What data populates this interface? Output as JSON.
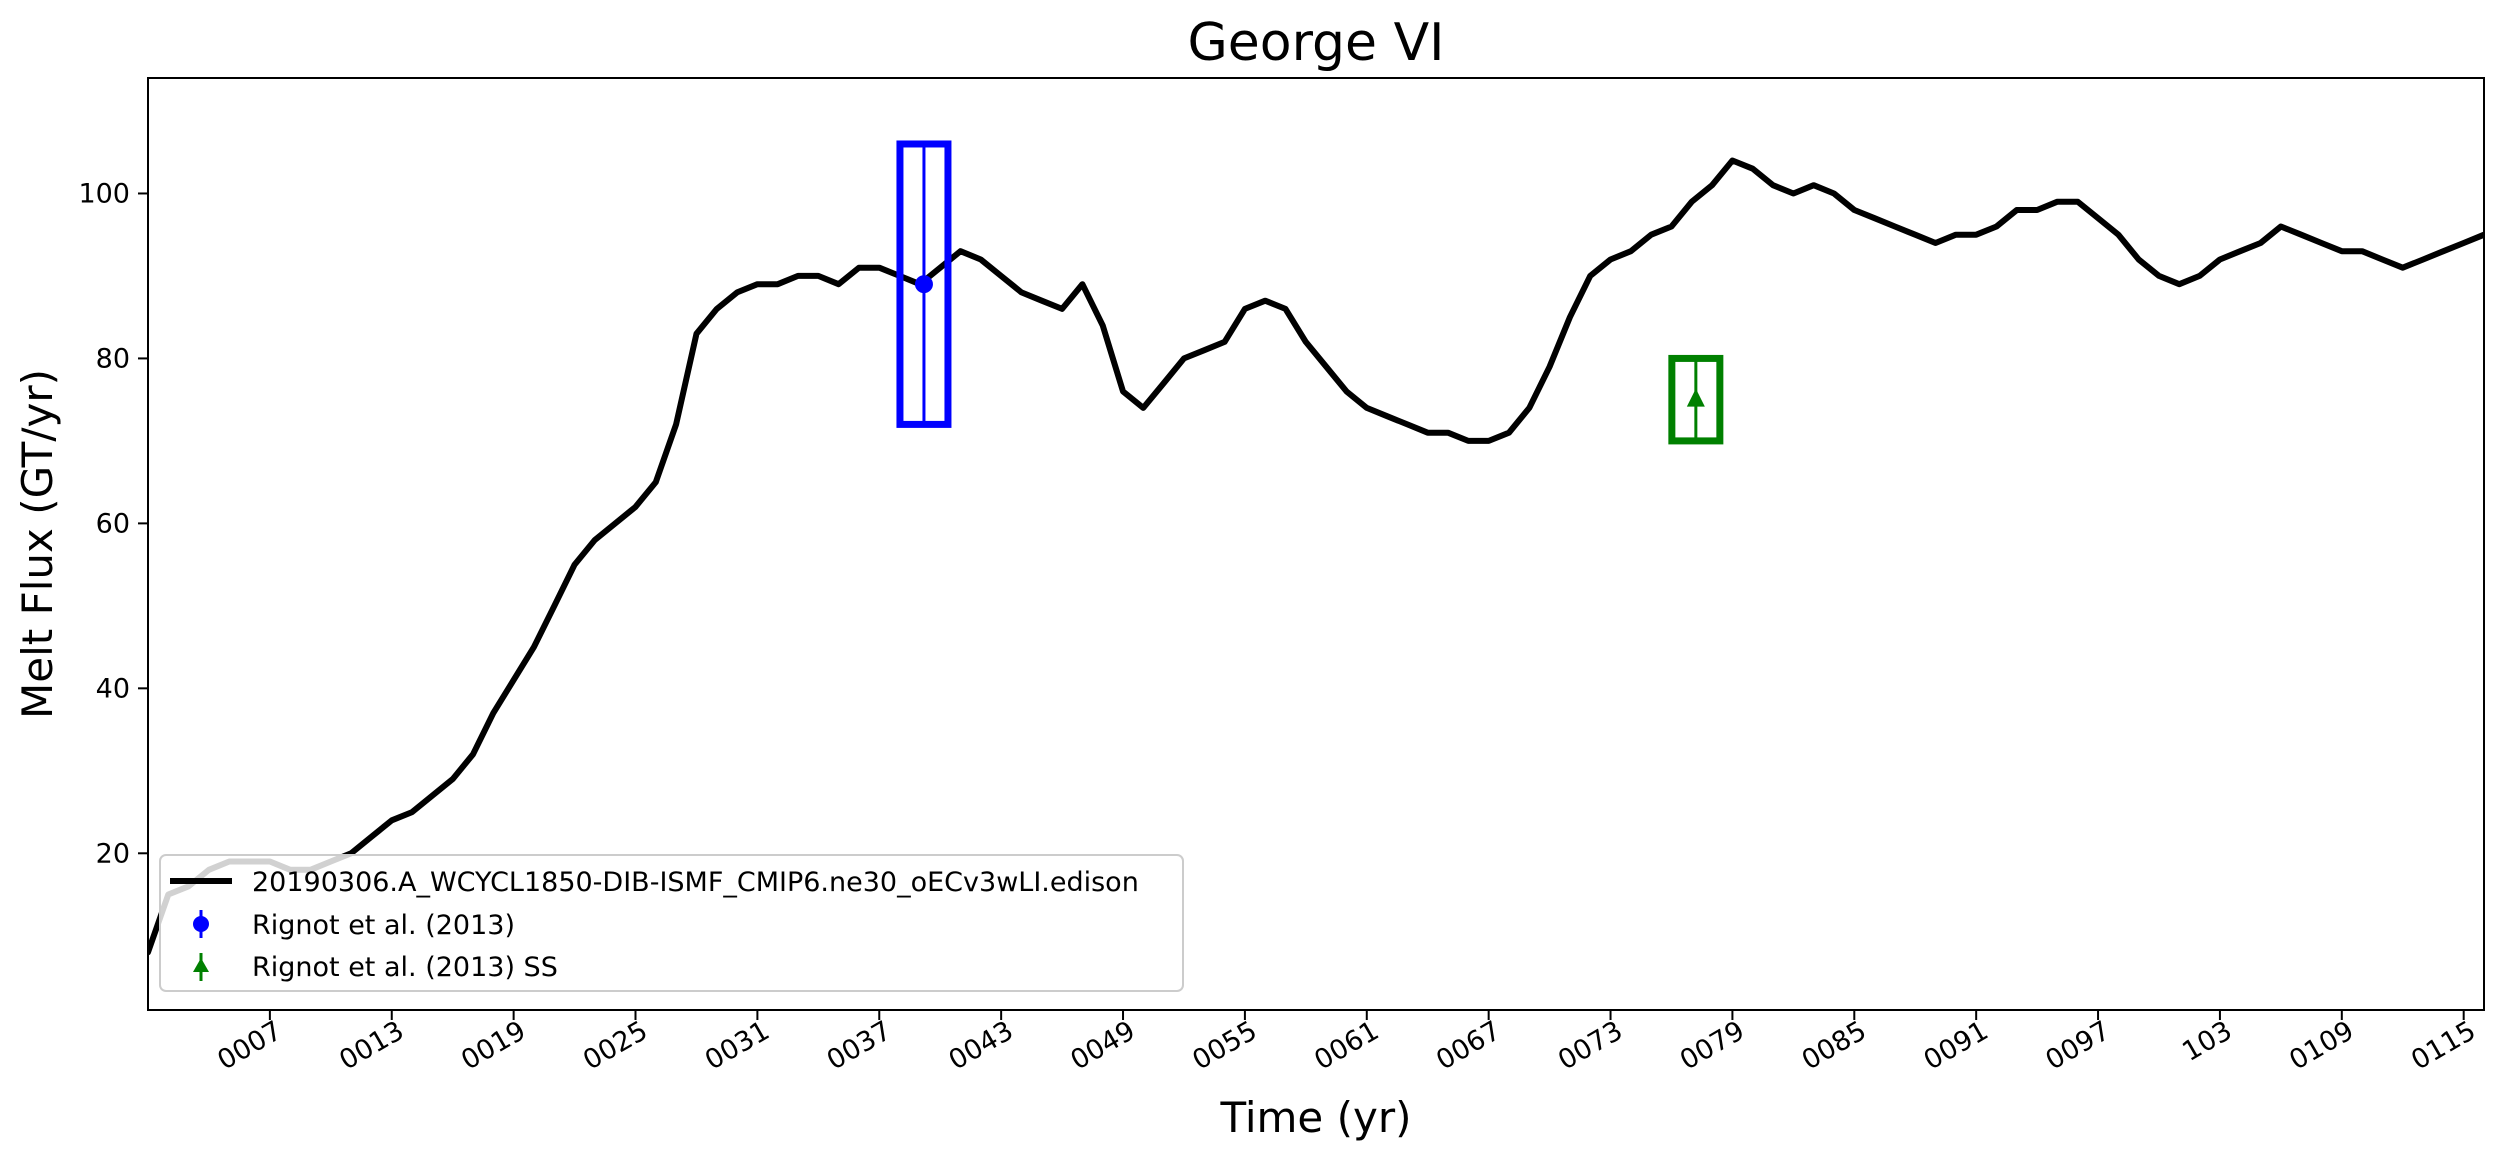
{
  "chart_data": {
    "type": "line",
    "title": "George VI",
    "xlabel": "Time (yr)",
    "ylabel": "Melt Flux (GT/yr)",
    "xlim": [
      1,
      116
    ],
    "ylim": [
      1,
      114
    ],
    "x_ticks": [
      7,
      13,
      19,
      25,
      31,
      37,
      43,
      49,
      55,
      61,
      67,
      73,
      79,
      85,
      91,
      97,
      103,
      109,
      115
    ],
    "x_tick_labels": [
      "0007",
      "0013",
      "0019",
      "0025",
      "0031",
      "0037",
      "0043",
      "0049",
      "0055",
      "0061",
      "0067",
      "0073",
      "0079",
      "0085",
      "0091",
      "0097",
      "103",
      "0109",
      "0115"
    ],
    "y_ticks": [
      20,
      40,
      60,
      80,
      100
    ],
    "y_tick_labels": [
      "20",
      "40",
      "60",
      "80",
      "100"
    ],
    "legend_position": "lower-left",
    "grid": false,
    "series": [
      {
        "name": "20190306.A_WCYCL1850-DIB-ISMF_CMIP6.ne30_oECv3wLI.edison",
        "color": "#000000",
        "style": "line",
        "x": [
          1,
          2,
          3,
          4,
          5,
          6,
          7,
          8,
          9,
          10,
          11,
          12,
          13,
          14,
          15,
          16,
          17,
          18,
          19,
          20,
          21,
          22,
          23,
          24,
          25,
          26,
          27,
          28,
          29,
          30,
          31,
          32,
          33,
          34,
          35,
          36,
          37,
          38,
          39,
          40,
          41,
          42,
          43,
          44,
          45,
          46,
          47,
          48,
          49,
          50,
          51,
          52,
          53,
          54,
          55,
          56,
          57,
          58,
          59,
          60,
          61,
          62,
          63,
          64,
          65,
          66,
          67,
          68,
          69,
          70,
          71,
          72,
          73,
          74,
          75,
          76,
          77,
          78,
          79,
          80,
          81,
          82,
          83,
          84,
          85,
          86,
          87,
          88,
          89,
          90,
          91,
          92,
          93,
          94,
          95,
          96,
          97,
          98,
          99,
          100,
          101,
          102,
          103,
          104,
          105,
          106,
          107,
          108,
          109,
          110,
          111,
          112,
          113,
          114,
          115,
          116
        ],
        "y": [
          8,
          15,
          16,
          18,
          19,
          19,
          19,
          18,
          18,
          19,
          20,
          22,
          24,
          25,
          27,
          29,
          32,
          37,
          41,
          45,
          50,
          55,
          58,
          60,
          62,
          65,
          72,
          83,
          86,
          88,
          89,
          89,
          90,
          90,
          89,
          91,
          91,
          90,
          89,
          91,
          93,
          92,
          90,
          88,
          87,
          86,
          89,
          84,
          76,
          74,
          77,
          80,
          81,
          82,
          86,
          87,
          86,
          82,
          79,
          76,
          74,
          73,
          72,
          71,
          71,
          70,
          70,
          71,
          74,
          79,
          85,
          90,
          92,
          93,
          95,
          96,
          99,
          101,
          104,
          103,
          101,
          100,
          101,
          100,
          98,
          97,
          96,
          95,
          94,
          95,
          95,
          96,
          98,
          98,
          99,
          99,
          97,
          95,
          92,
          90,
          89,
          90,
          92,
          93,
          94,
          96,
          95,
          94,
          93,
          93,
          92,
          91,
          92,
          93,
          94,
          95
        ]
      },
      {
        "name": "Rignot et al. (2013)",
        "color": "#0000ff",
        "style": "errorbar",
        "marker": "circle",
        "x": [
          39.2
        ],
        "y": [
          89
        ],
        "yerr_low": [
          72
        ],
        "yerr_high": [
          106
        ]
      },
      {
        "name": "Rignot et al. (2013) SS",
        "color": "#008000",
        "style": "errorbar",
        "marker": "triangle",
        "x": [
          77.2
        ],
        "y": [
          75
        ],
        "yerr_low": [
          70
        ],
        "yerr_high": [
          80
        ]
      }
    ]
  }
}
